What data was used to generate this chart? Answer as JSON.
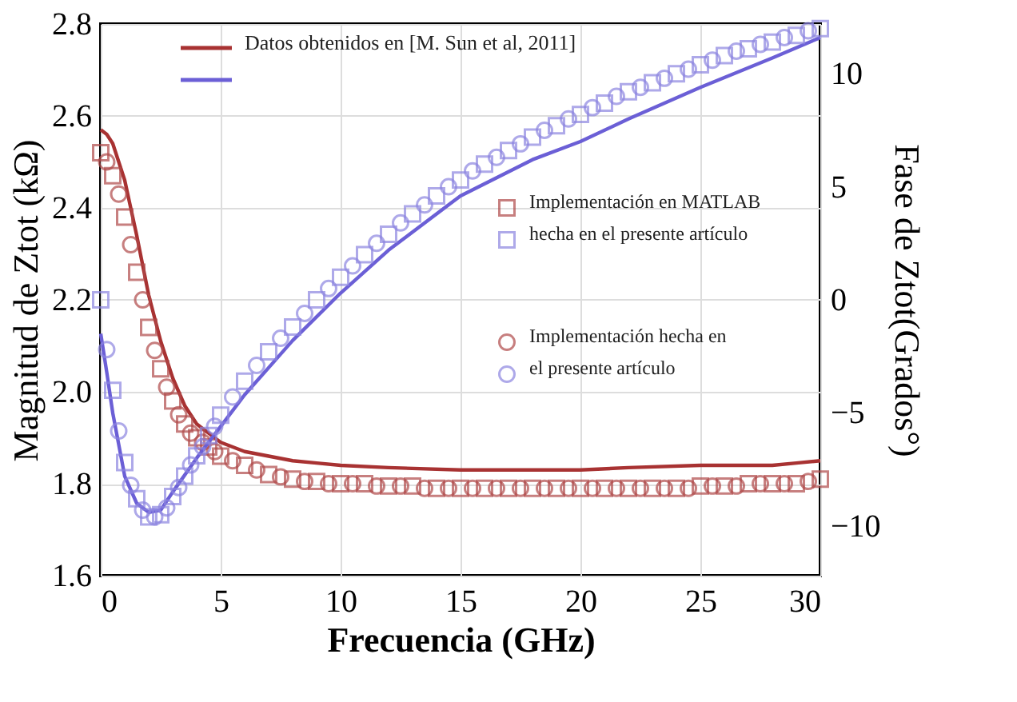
{
  "chart_data": {
    "type": "line",
    "xlabel": "Frecuencia (GHz)",
    "ylabel": "Magnitud de Ztot (kΩ)",
    "y2label": "Fase de Ztot(Grados°)",
    "xlim": [
      0,
      30
    ],
    "xticks": [
      0,
      5,
      10,
      15,
      20,
      25,
      30
    ],
    "ylim": [
      1.6,
      2.8
    ],
    "yticks": [
      1.6,
      1.8,
      {
        "value": 2.0,
        "label": "2.0"
      },
      2.2,
      2.4,
      2.6,
      2.8
    ],
    "y2lim": [
      -12.2,
      12.2
    ],
    "y2ticks": [
      -10,
      -5,
      0,
      5,
      10
    ],
    "grid": true,
    "legend": "top",
    "series": [
      {
        "name": "Datos obtenidos en [M. Sun et al, 2011]",
        "color": "#a83232",
        "x": [
          0,
          0.25,
          0.5,
          1,
          1.5,
          2,
          2.5,
          3,
          3.5,
          4,
          4.5,
          5,
          6,
          7,
          8,
          9,
          10,
          12,
          15,
          18,
          20,
          22,
          25,
          28,
          29,
          30
        ],
        "values": [
          2.57,
          2.56,
          2.54,
          2.46,
          2.34,
          2.21,
          2.11,
          2.03,
          1.97,
          1.93,
          1.91,
          1.89,
          1.87,
          1.86,
          1.85,
          1.845,
          1.84,
          1.835,
          1.83,
          1.83,
          1.83,
          1.835,
          1.84,
          1.84,
          1.845,
          1.85
        ]
      },
      {
        "axis": "y2",
        "color": "#6b5fd6",
        "x": [
          0,
          0.25,
          0.5,
          1,
          1.5,
          2,
          2.5,
          3,
          4,
          5,
          6,
          7,
          8,
          10,
          12,
          15,
          18,
          20,
          22,
          25,
          28,
          30
        ],
        "values": [
          -1.5,
          -3.2,
          -5,
          -7.8,
          -9,
          -9.4,
          -9.3,
          -8.5,
          -7,
          -5.6,
          -4.2,
          -3,
          -1.8,
          0.3,
          2.2,
          4.6,
          6.2,
          7.0,
          8.0,
          9.4,
          10.7,
          11.6
        ]
      },
      {
        "name": "Implementación en MATLAB hecha en el presente artículo",
        "type": "scatter",
        "marker": "square",
        "color": "#b04a4a",
        "x": [
          0,
          0.5,
          1,
          1.5,
          2,
          2.5,
          3,
          3.5,
          4,
          4.5,
          5,
          6,
          7,
          8,
          9,
          10,
          11,
          12,
          13,
          14,
          15,
          16,
          17,
          18,
          19,
          20,
          21,
          22,
          23,
          24,
          25,
          26,
          27,
          28,
          29,
          30
        ],
        "values": [
          2.52,
          2.47,
          2.38,
          2.26,
          2.14,
          2.05,
          1.98,
          1.93,
          1.9,
          1.88,
          1.86,
          1.84,
          1.82,
          1.81,
          1.805,
          1.8,
          1.8,
          1.795,
          1.795,
          1.79,
          1.79,
          1.79,
          1.79,
          1.79,
          1.79,
          1.79,
          1.79,
          1.79,
          1.79,
          1.79,
          1.795,
          1.795,
          1.8,
          1.8,
          1.8,
          1.81
        ]
      },
      {
        "type": "scatter",
        "marker": "square",
        "axis": "y2",
        "color": "#8c85e0",
        "x": [
          0,
          0.5,
          1,
          1.5,
          2,
          2.5,
          3,
          3.5,
          4,
          4.5,
          5,
          6,
          7,
          8,
          9,
          10,
          11,
          12,
          13,
          14,
          15,
          16,
          17,
          18,
          19,
          20,
          21,
          22,
          23,
          24,
          25,
          26,
          27,
          28,
          29,
          30
        ],
        "values": [
          0,
          -4,
          -7.2,
          -8.8,
          -9.6,
          -9.5,
          -8.7,
          -7.8,
          -6.9,
          -6,
          -5.1,
          -3.6,
          -2.3,
          -1.2,
          0,
          1,
          2,
          2.9,
          3.8,
          4.6,
          5.3,
          6,
          6.6,
          7.2,
          7.7,
          8.2,
          8.7,
          9.2,
          9.6,
          10,
          10.4,
          10.8,
          11.1,
          11.4,
          11.7,
          12
        ]
      },
      {
        "name": "Implementación hecha en el presente artículo",
        "type": "scatter",
        "marker": "circle",
        "color": "#b04a4a",
        "x": [
          0.25,
          0.75,
          1.25,
          1.75,
          2.25,
          2.75,
          3.25,
          3.75,
          4.25,
          4.75,
          5.5,
          6.5,
          7.5,
          8.5,
          9.5,
          10.5,
          11.5,
          12.5,
          13.5,
          14.5,
          15.5,
          16.5,
          17.5,
          18.5,
          19.5,
          20.5,
          21.5,
          22.5,
          23.5,
          24.5,
          25.5,
          26.5,
          27.5,
          28.5,
          29.5
        ],
        "values": [
          2.5,
          2.43,
          2.32,
          2.2,
          2.09,
          2.01,
          1.95,
          1.91,
          1.89,
          1.87,
          1.85,
          1.83,
          1.815,
          1.805,
          1.8,
          1.8,
          1.795,
          1.795,
          1.79,
          1.79,
          1.79,
          1.79,
          1.79,
          1.79,
          1.79,
          1.79,
          1.79,
          1.79,
          1.79,
          1.79,
          1.795,
          1.795,
          1.8,
          1.8,
          1.805
        ]
      },
      {
        "type": "scatter",
        "marker": "circle",
        "axis": "y2",
        "color": "#8c85e0",
        "x": [
          0.25,
          0.75,
          1.25,
          1.75,
          2.25,
          2.75,
          3.25,
          3.75,
          4.25,
          4.75,
          5.5,
          6.5,
          7.5,
          8.5,
          9.5,
          10.5,
          11.5,
          12.5,
          13.5,
          14.5,
          15.5,
          16.5,
          17.5,
          18.5,
          19.5,
          20.5,
          21.5,
          22.5,
          23.5,
          24.5,
          25.5,
          26.5,
          27.5,
          28.5,
          29.5
        ],
        "values": [
          -2.2,
          -5.8,
          -8.2,
          -9.3,
          -9.6,
          -9.2,
          -8.3,
          -7.3,
          -6.5,
          -5.6,
          -4.3,
          -2.9,
          -1.7,
          -0.6,
          0.5,
          1.5,
          2.5,
          3.4,
          4.2,
          5,
          5.7,
          6.3,
          6.9,
          7.5,
          8,
          8.5,
          9,
          9.4,
          9.8,
          10.2,
          10.6,
          11,
          11.3,
          11.6,
          11.9
        ]
      }
    ]
  }
}
